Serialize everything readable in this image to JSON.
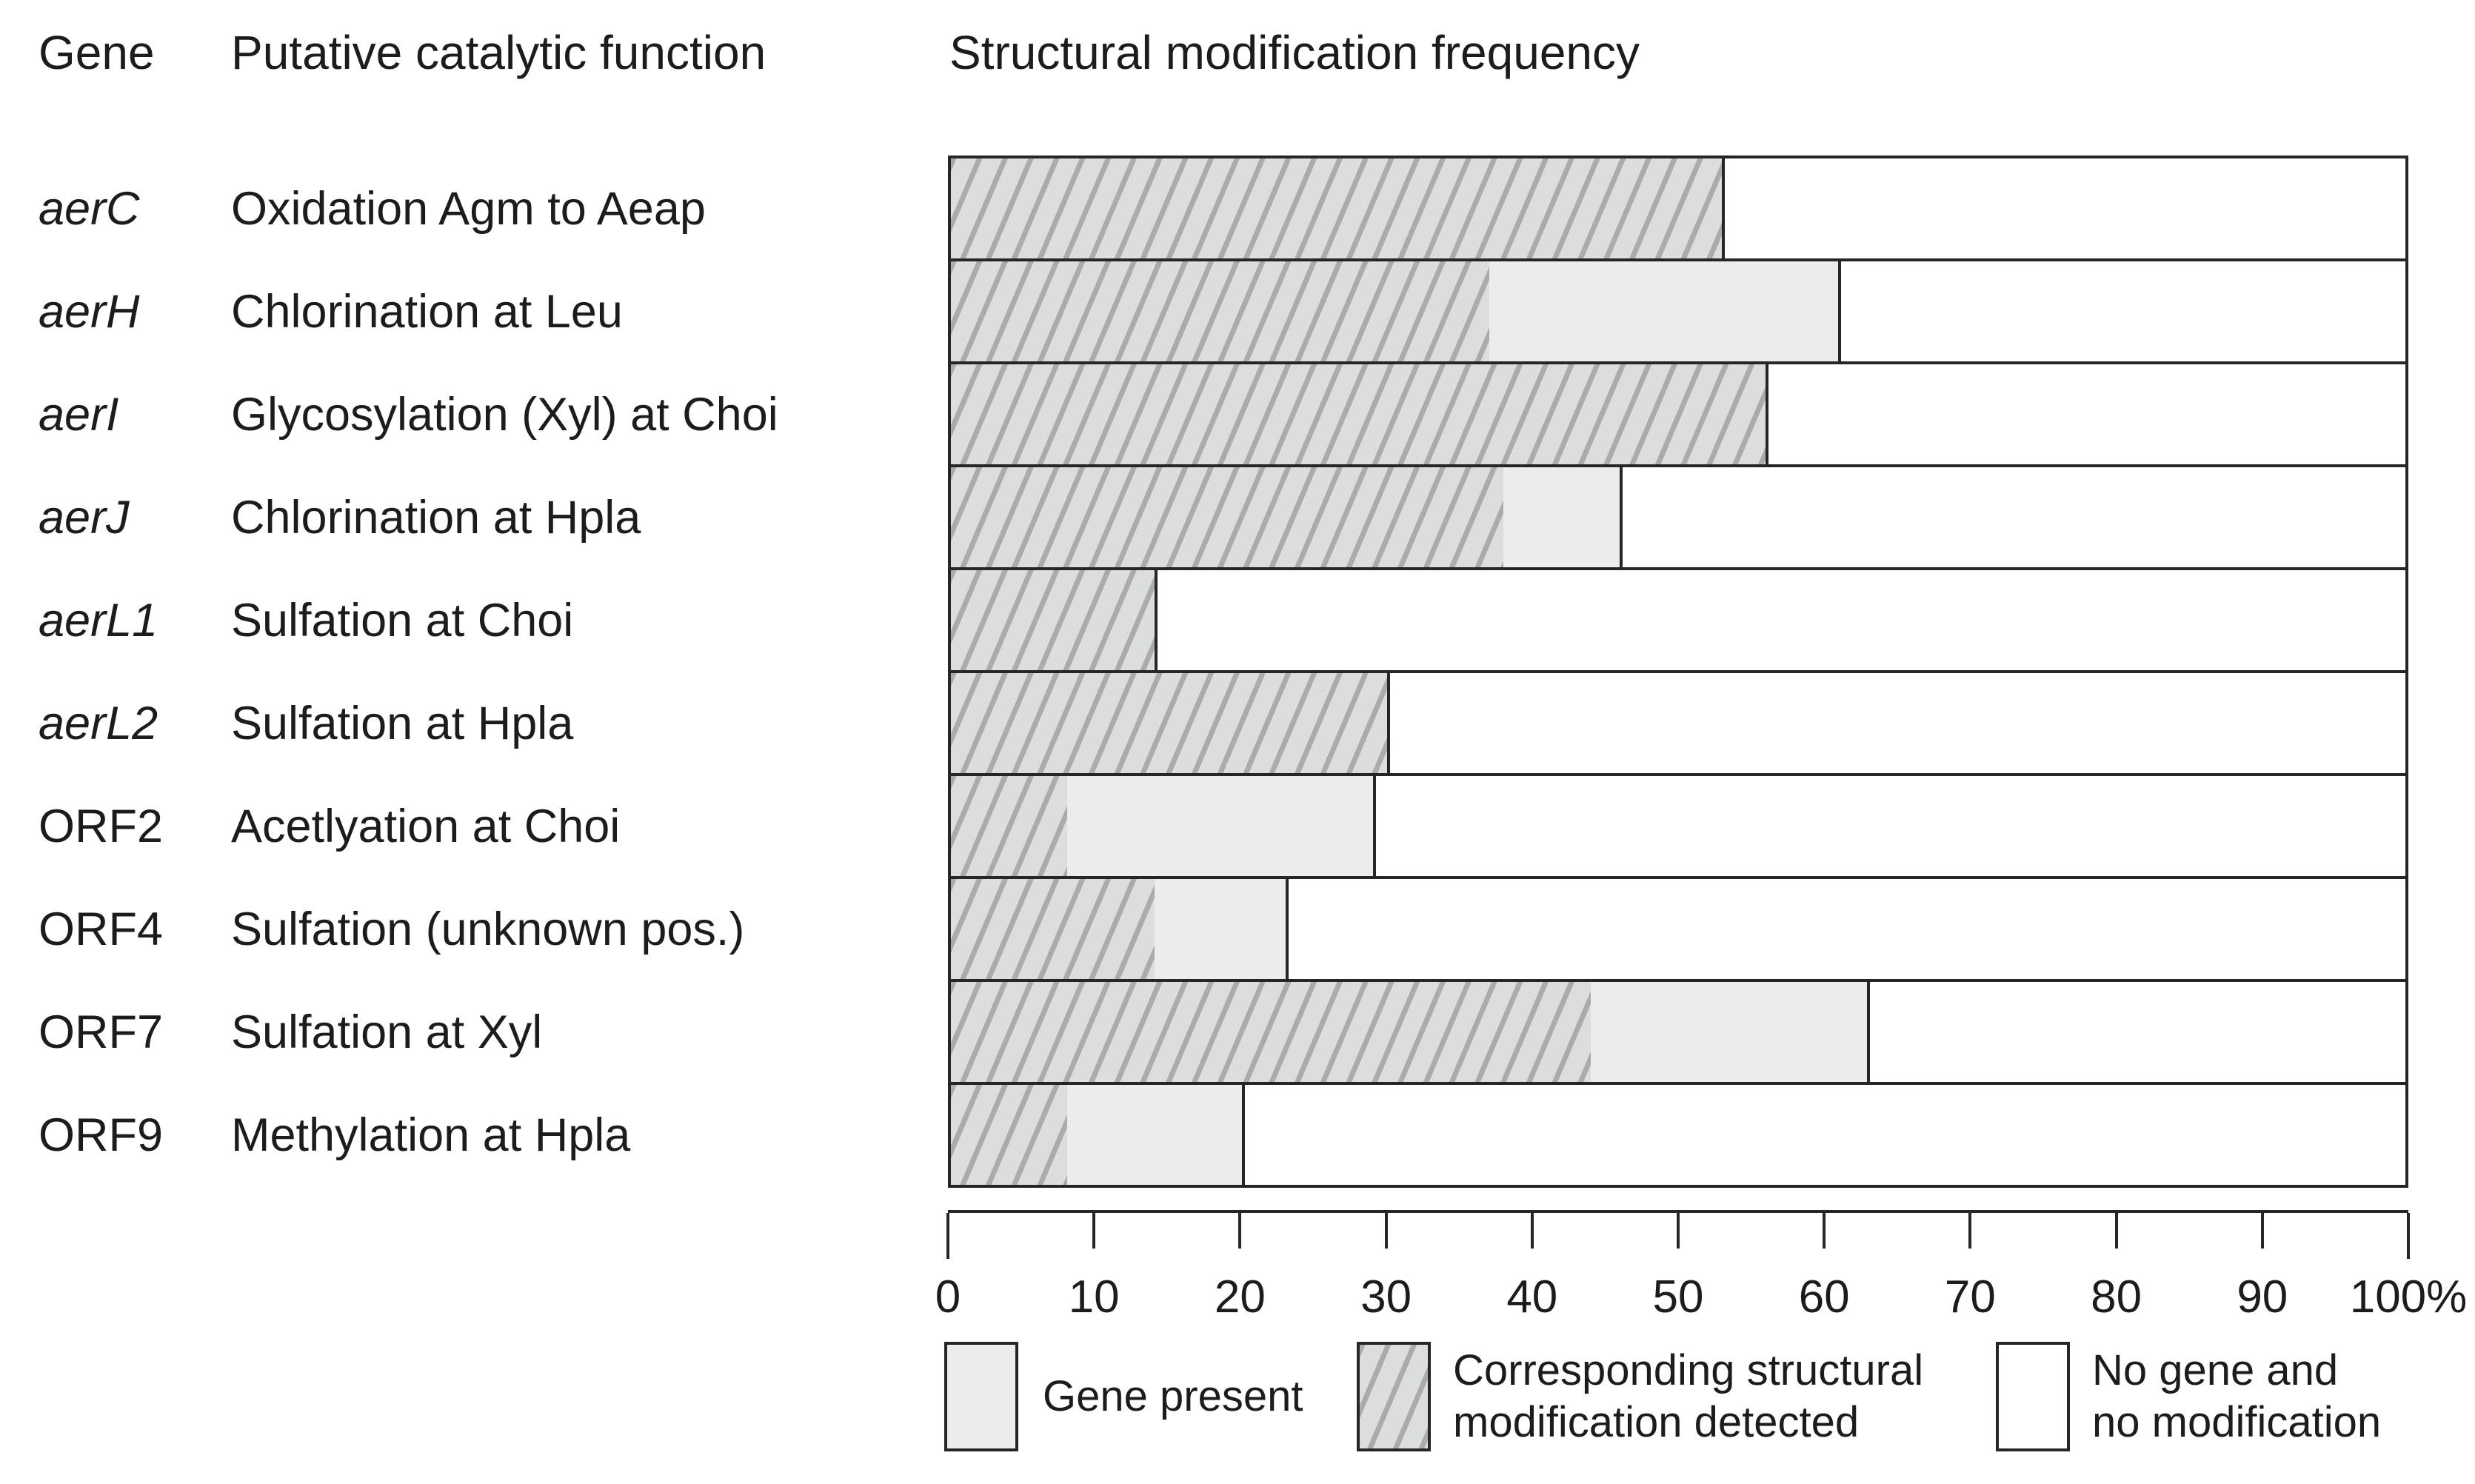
{
  "figure": {
    "columns": {
      "gene": "Gene",
      "function": "Putative catalytic function",
      "chart": "Structural modification frequency"
    }
  },
  "rows": [
    {
      "gene": "aerC",
      "gene_italic": true,
      "function": "Oxidation Agm to Aeap",
      "modification_detected_pct": 53,
      "gene_present_total_pct": 53
    },
    {
      "gene": "aerH",
      "gene_italic": true,
      "function": "Chlorination at Leu",
      "modification_detected_pct": 37,
      "gene_present_total_pct": 61
    },
    {
      "gene": "aerI",
      "gene_italic": true,
      "function": "Glycosylation (Xyl) at Choi",
      "modification_detected_pct": 56,
      "gene_present_total_pct": 56
    },
    {
      "gene": "aerJ",
      "gene_italic": true,
      "function": "Chlorination at Hpla",
      "modification_detected_pct": 38,
      "gene_present_total_pct": 46
    },
    {
      "gene": "aerL1",
      "gene_italic": true,
      "function": "Sulfation at Choi",
      "modification_detected_pct": 14,
      "gene_present_total_pct": 14
    },
    {
      "gene": "aerL2",
      "gene_italic": true,
      "function": "Sulfation at Hpla",
      "modification_detected_pct": 30,
      "gene_present_total_pct": 30
    },
    {
      "gene": "ORF2",
      "gene_italic": false,
      "function": "Acetlyation at Choi",
      "modification_detected_pct": 8,
      "gene_present_total_pct": 29
    },
    {
      "gene": "ORF4",
      "gene_italic": false,
      "function": "Sulfation (unknown pos.)",
      "modification_detected_pct": 14,
      "gene_present_total_pct": 23
    },
    {
      "gene": "ORF7",
      "gene_italic": false,
      "function": "Sulfation at Xyl",
      "modification_detected_pct": 44,
      "gene_present_total_pct": 63
    },
    {
      "gene": "ORF9",
      "gene_italic": false,
      "function": "Methylation at Hpla",
      "modification_detected_pct": 8,
      "gene_present_total_pct": 20
    }
  ],
  "axis": {
    "tick_labels": [
      "0",
      "10",
      "20",
      "30",
      "40",
      "50",
      "60",
      "70",
      "80",
      "90",
      "100%"
    ]
  },
  "legend": {
    "items": [
      {
        "key": "gene-present",
        "lines": [
          "Gene present"
        ]
      },
      {
        "key": "modification-detected",
        "lines": [
          "Corresponding structural",
          "modification detected"
        ]
      },
      {
        "key": "no-gene-no-modification",
        "lines": [
          "No gene and",
          "no modification"
        ]
      }
    ]
  },
  "colors": {
    "gene_present_fill": "#ebecec",
    "hatch_background": "#dcdede",
    "hatch_stripe": "#a8acab",
    "no_gene_fill": "#ffffff",
    "border": "#262626",
    "text": "#1c1c1c"
  },
  "chart_data": {
    "type": "bar",
    "orientation": "horizontal",
    "stacked": true,
    "title": "Structural modification frequency",
    "xlabel": "Structural modification frequency (%)",
    "ylabel": "Gene",
    "xlim": [
      0,
      100
    ],
    "x_ticks": [
      0,
      10,
      20,
      30,
      40,
      50,
      60,
      70,
      80,
      90,
      100
    ],
    "unit": "%",
    "grid": false,
    "legend_position": "bottom",
    "categories": [
      "aerC",
      "aerH",
      "aerI",
      "aerJ",
      "aerL1",
      "aerL2",
      "ORF2",
      "ORF4",
      "ORF7",
      "ORF9"
    ],
    "category_functions": [
      "Oxidation Agm to Aeap",
      "Chlorination at Leu",
      "Glycosylation (Xyl) at Choi",
      "Chlorination at Hpla",
      "Sulfation at Choi",
      "Sulfation at Hpla",
      "Acetlyation at Choi",
      "Sulfation (unknown pos.)",
      "Sulfation at Xyl",
      "Methylation at Hpla"
    ],
    "series": [
      {
        "name": "Corresponding structural modification detected",
        "values": [
          53,
          37,
          56,
          38,
          14,
          30,
          8,
          14,
          44,
          8
        ]
      },
      {
        "name": "Gene present",
        "values": [
          0,
          24,
          0,
          8,
          0,
          0,
          21,
          9,
          19,
          12
        ]
      },
      {
        "name": "No gene and no modification",
        "values": [
          47,
          39,
          44,
          54,
          86,
          70,
          71,
          77,
          37,
          80
        ]
      }
    ]
  }
}
